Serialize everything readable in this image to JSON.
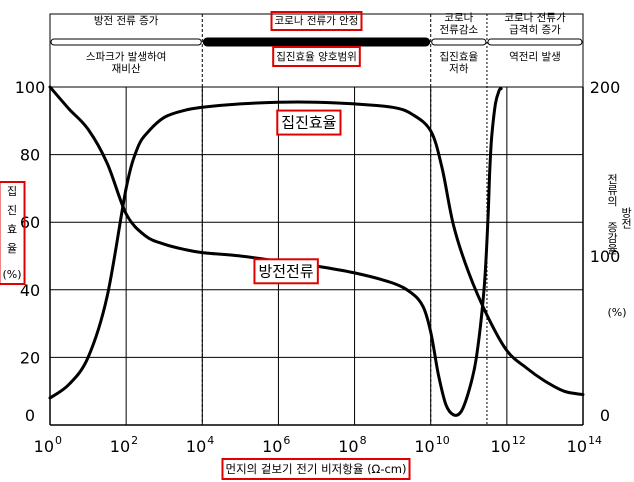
{
  "chart_data": {
    "type": "line",
    "title": "",
    "xlabel": "먼지의 겉보기 전기 비저항율 (Ω-cm)",
    "ylabel_left": "집진효율 (%)",
    "ylabel_left_chars": [
      "집",
      "진",
      "효",
      "율"
    ],
    "ylabel_left_unit": "(%)",
    "ylabel_right": "방전 전류의 증감율 (%)",
    "ylabel_right_line1": "방전",
    "ylabel_right_line2": "전류의",
    "ylabel_right_line3": "증감율",
    "ylabel_right_unit": "(%)",
    "x_scale": "log",
    "xlim": [
      1,
      100000000000000
    ],
    "x_ticks": [
      {
        "base": "10",
        "exp": "0"
      },
      {
        "base": "10",
        "exp": "2"
      },
      {
        "base": "10",
        "exp": "4"
      },
      {
        "base": "10",
        "exp": "6"
      },
      {
        "base": "10",
        "exp": "8"
      },
      {
        "base": "10",
        "exp": "10"
      },
      {
        "base": "10",
        "exp": "12"
      },
      {
        "base": "10",
        "exp": "14"
      }
    ],
    "ylim_left": [
      0,
      100
    ],
    "y_ticks_left": [
      "0",
      "20",
      "40",
      "60",
      "80",
      "100"
    ],
    "ylim_right": [
      0,
      200
    ],
    "y_ticks_right": [
      "0",
      "100",
      "200"
    ],
    "grid": true,
    "regions": [
      {
        "x_from": 1,
        "x_to": 10000,
        "top_label": "방전 전류 증가",
        "bottom_label": "스파크가 발생하여\n재비산",
        "bar": "thin",
        "highlight": false
      },
      {
        "x_from": 10000,
        "x_to": 10000000000,
        "top_label": "코로나 전류가 안정",
        "bottom_label": "집진효율 양호범위",
        "bar": "thick",
        "highlight": true
      },
      {
        "x_from": 10000000000,
        "x_to": 300000000000,
        "top_label": "코로나\n전류감소",
        "bottom_label": "집진효율\n저하",
        "bar": "thin",
        "highlight": false
      },
      {
        "x_from": 300000000000,
        "x_to": 100000000000000,
        "top_label": "코로나 전류가\n급격히 증가",
        "bottom_label": "역전리 발생",
        "bar": "thin",
        "highlight": false
      }
    ],
    "series": [
      {
        "name": "집진효율",
        "axis": "left",
        "x_exp": [
          0,
          0.5,
          1,
          1.5,
          2,
          2.3,
          2.6,
          3,
          3.5,
          4,
          5,
          6,
          7,
          8,
          9,
          9.5,
          10,
          10.3,
          10.6,
          11,
          11.5,
          12,
          12.5,
          13,
          13.5,
          14
        ],
        "values": [
          8,
          12,
          20,
          38,
          70,
          82,
          87,
          91,
          93,
          94,
          95,
          95.5,
          95.5,
          95,
          94,
          92,
          87,
          76,
          59,
          45,
          32,
          22,
          17,
          13,
          10,
          9
        ]
      },
      {
        "name": "방전전류",
        "axis": "right",
        "x_exp": [
          0,
          0.5,
          1,
          1.5,
          2,
          2.5,
          3,
          3.5,
          4,
          5,
          6,
          7,
          8,
          9,
          9.5,
          9.8,
          10,
          10.2,
          10.4,
          10.6,
          10.8,
          11,
          11.2,
          11.4,
          11.5,
          11.55,
          11.6,
          11.7,
          11.8,
          11.85
        ],
        "values": [
          200,
          187,
          175,
          155,
          125,
          112,
          107,
          104,
          102,
          100,
          97,
          94,
          90,
          84,
          78,
          70,
          55,
          30,
          12,
          6,
          8,
          20,
          40,
          80,
          120,
          150,
          170,
          190,
          198,
          199
        ]
      }
    ],
    "annotations": [
      {
        "text": "집진효율",
        "series": "집진효율",
        "x_exp": 6.8,
        "y": 88,
        "highlight": true
      },
      {
        "text": "방전전류",
        "series": "방전전류",
        "x_exp": 6.2,
        "y": 44,
        "highlight": true
      }
    ],
    "colors": {
      "line": "#000000",
      "highlight": "#e00000"
    }
  }
}
